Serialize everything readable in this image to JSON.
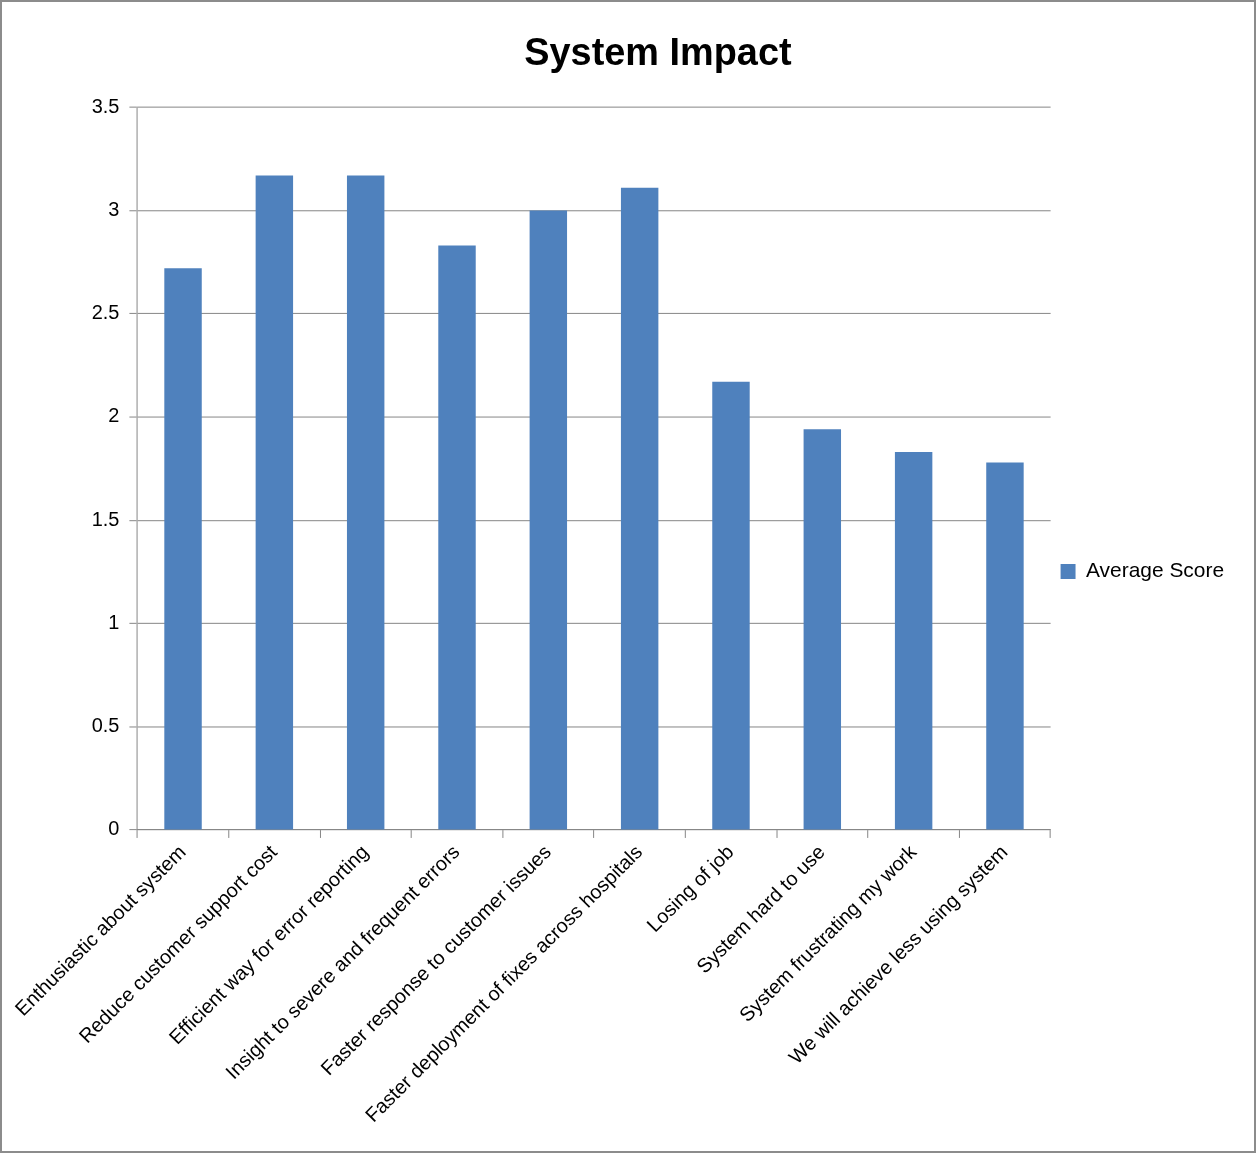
{
  "chart_data": {
    "type": "bar",
    "title": "System Impact",
    "categories": [
      "Enthusiastic about system",
      "Reduce customer support cost",
      "Efficient way for error reporting",
      "Insight to severe and frequent errors",
      "Faster response to customer issues",
      "Faster deployment of fixes across hospitals",
      "Losing of job",
      "System hard to use",
      "System frustrating my work",
      "We will achieve less using system"
    ],
    "series": [
      {
        "name": "Average Score",
        "color": "#4f81bd",
        "values": [
          2.72,
          3.17,
          3.17,
          2.83,
          3.0,
          3.11,
          2.17,
          1.94,
          1.83,
          1.78
        ]
      }
    ],
    "ylim": [
      0,
      3.5
    ],
    "yticks": [
      0,
      0.5,
      1,
      1.5,
      2,
      2.5,
      3,
      3.5
    ],
    "grid": "y",
    "legend": "right"
  }
}
